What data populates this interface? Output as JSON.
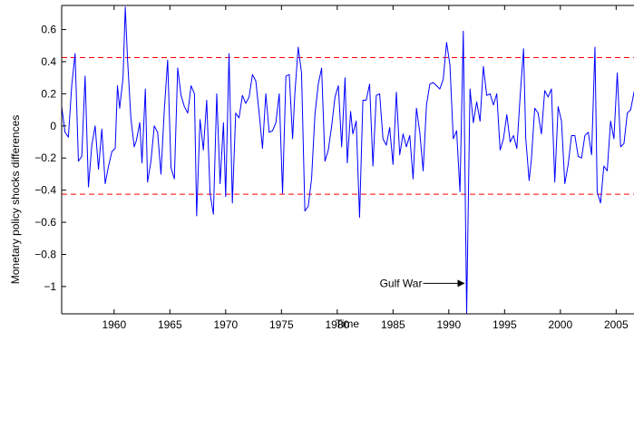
{
  "chart_data": {
    "type": "line",
    "title": "",
    "xlabel": "Time",
    "ylabel": "Monetary policy shocks differences",
    "xlim": [
      1955.3,
      2006.6
    ],
    "ylim": [
      -1.17,
      0.75
    ],
    "x_ticks": [
      1960,
      1965,
      1970,
      1975,
      1980,
      1985,
      1990,
      1995,
      2000,
      2005
    ],
    "x_tick_labels": [
      "1960",
      "1965",
      "1970",
      "1975",
      "1980",
      "1985",
      "1990",
      "1995",
      "2000",
      "2005"
    ],
    "y_ticks": [
      0.6,
      0.4,
      0.2,
      0,
      -0.2,
      -0.4,
      -0.6,
      -0.8,
      -1
    ],
    "y_tick_labels": [
      "0.6",
      "0.4",
      "0.2",
      "0",
      "−0.2",
      "−0.4",
      "−0.6",
      "−0.8",
      "−1"
    ],
    "grid": false,
    "series": [
      {
        "color": "#0000ff",
        "points": [
          [
            1955.3,
            0.12
          ],
          [
            1955.6,
            -0.04
          ],
          [
            1955.9,
            -0.07
          ],
          [
            1956.2,
            0.25
          ],
          [
            1956.5,
            0.45
          ],
          [
            1956.8,
            -0.22
          ],
          [
            1957.1,
            -0.19
          ],
          [
            1957.4,
            0.31
          ],
          [
            1957.7,
            -0.38
          ],
          [
            1958.0,
            -0.12
          ],
          [
            1958.3,
            0.0
          ],
          [
            1958.6,
            -0.27
          ],
          [
            1958.9,
            -0.02
          ],
          [
            1959.2,
            -0.36
          ],
          [
            1959.5,
            -0.25
          ],
          [
            1959.8,
            -0.16
          ],
          [
            1960.1,
            -0.14
          ],
          [
            1960.3,
            0.25
          ],
          [
            1960.5,
            0.11
          ],
          [
            1960.8,
            0.3
          ],
          [
            1961.0,
            0.74
          ],
          [
            1961.2,
            0.42
          ],
          [
            1961.5,
            0.05
          ],
          [
            1961.8,
            -0.13
          ],
          [
            1962.0,
            -0.09
          ],
          [
            1962.3,
            0.02
          ],
          [
            1962.5,
            -0.23
          ],
          [
            1962.8,
            0.23
          ],
          [
            1963.0,
            -0.35
          ],
          [
            1963.3,
            -0.22
          ],
          [
            1963.6,
            0.0
          ],
          [
            1963.9,
            -0.04
          ],
          [
            1964.2,
            -0.3
          ],
          [
            1964.5,
            0.1
          ],
          [
            1964.8,
            0.41
          ],
          [
            1965.1,
            -0.26
          ],
          [
            1965.4,
            -0.33
          ],
          [
            1965.7,
            0.36
          ],
          [
            1966.0,
            0.19
          ],
          [
            1966.3,
            0.12
          ],
          [
            1966.6,
            0.08
          ],
          [
            1966.9,
            0.25
          ],
          [
            1967.2,
            0.2
          ],
          [
            1967.4,
            -0.56
          ],
          [
            1967.7,
            0.04
          ],
          [
            1968.0,
            -0.15
          ],
          [
            1968.3,
            0.16
          ],
          [
            1968.6,
            -0.42
          ],
          [
            1968.9,
            -0.55
          ],
          [
            1969.2,
            0.2
          ],
          [
            1969.5,
            -0.36
          ],
          [
            1969.8,
            0.02
          ],
          [
            1970.0,
            -0.44
          ],
          [
            1970.3,
            0.45
          ],
          [
            1970.6,
            -0.48
          ],
          [
            1970.9,
            0.08
          ],
          [
            1971.2,
            0.05
          ],
          [
            1971.5,
            0.19
          ],
          [
            1971.8,
            0.14
          ],
          [
            1972.1,
            0.18
          ],
          [
            1972.4,
            0.32
          ],
          [
            1972.7,
            0.28
          ],
          [
            1973.0,
            0.08
          ],
          [
            1973.3,
            -0.14
          ],
          [
            1973.6,
            0.2
          ],
          [
            1973.9,
            -0.04
          ],
          [
            1974.2,
            -0.03
          ],
          [
            1974.5,
            0.02
          ],
          [
            1974.8,
            0.2
          ],
          [
            1975.1,
            -0.42
          ],
          [
            1975.4,
            0.31
          ],
          [
            1975.7,
            0.32
          ],
          [
            1976.0,
            -0.08
          ],
          [
            1976.2,
            0.2
          ],
          [
            1976.5,
            0.49
          ],
          [
            1976.8,
            0.33
          ],
          [
            1977.1,
            -0.53
          ],
          [
            1977.4,
            -0.5
          ],
          [
            1977.7,
            -0.33
          ],
          [
            1978.0,
            0.07
          ],
          [
            1978.3,
            0.26
          ],
          [
            1978.6,
            0.36
          ],
          [
            1978.9,
            -0.22
          ],
          [
            1979.2,
            -0.15
          ],
          [
            1979.5,
            0.0
          ],
          [
            1979.8,
            0.18
          ],
          [
            1980.1,
            0.25
          ],
          [
            1980.4,
            -0.13
          ],
          [
            1980.7,
            0.3
          ],
          [
            1980.9,
            -0.23
          ],
          [
            1981.2,
            0.09
          ],
          [
            1981.4,
            -0.05
          ],
          [
            1981.7,
            0.03
          ],
          [
            1982.0,
            -0.57
          ],
          [
            1982.3,
            0.16
          ],
          [
            1982.6,
            0.16
          ],
          [
            1982.9,
            0.26
          ],
          [
            1983.2,
            -0.25
          ],
          [
            1983.5,
            0.19
          ],
          [
            1983.8,
            0.2
          ],
          [
            1984.1,
            -0.08
          ],
          [
            1984.4,
            -0.12
          ],
          [
            1984.7,
            -0.01
          ],
          [
            1985.0,
            -0.24
          ],
          [
            1985.3,
            0.21
          ],
          [
            1985.6,
            -0.18
          ],
          [
            1985.9,
            -0.05
          ],
          [
            1986.2,
            -0.13
          ],
          [
            1986.5,
            -0.06
          ],
          [
            1986.8,
            -0.33
          ],
          [
            1987.1,
            0.11
          ],
          [
            1987.4,
            -0.04
          ],
          [
            1987.7,
            -0.28
          ],
          [
            1988.0,
            0.13
          ],
          [
            1988.3,
            0.26
          ],
          [
            1988.6,
            0.27
          ],
          [
            1988.9,
            0.25
          ],
          [
            1989.2,
            0.23
          ],
          [
            1989.5,
            0.29
          ],
          [
            1989.8,
            0.52
          ],
          [
            1990.1,
            0.38
          ],
          [
            1990.4,
            -0.08
          ],
          [
            1990.7,
            -0.03
          ],
          [
            1991.0,
            -0.41
          ],
          [
            1991.3,
            0.59
          ],
          [
            1991.6,
            -1.17
          ],
          [
            1991.9,
            0.23
          ],
          [
            1992.2,
            0.02
          ],
          [
            1992.5,
            0.15
          ],
          [
            1992.8,
            0.03
          ],
          [
            1993.1,
            0.37
          ],
          [
            1993.4,
            0.19
          ],
          [
            1993.7,
            0.2
          ],
          [
            1994.0,
            0.13
          ],
          [
            1994.3,
            0.2
          ],
          [
            1994.6,
            -0.15
          ],
          [
            1994.9,
            -0.08
          ],
          [
            1995.2,
            0.07
          ],
          [
            1995.5,
            -0.1
          ],
          [
            1995.8,
            -0.06
          ],
          [
            1996.1,
            -0.14
          ],
          [
            1996.4,
            0.19
          ],
          [
            1996.7,
            0.48
          ],
          [
            1996.9,
            -0.08
          ],
          [
            1997.2,
            -0.34
          ],
          [
            1997.4,
            -0.21
          ],
          [
            1997.7,
            0.11
          ],
          [
            1998.0,
            0.08
          ],
          [
            1998.3,
            -0.05
          ],
          [
            1998.6,
            0.22
          ],
          [
            1998.9,
            0.18
          ],
          [
            1999.2,
            0.23
          ],
          [
            1999.5,
            -0.35
          ],
          [
            1999.8,
            0.12
          ],
          [
            2000.1,
            0.03
          ],
          [
            2000.4,
            -0.36
          ],
          [
            2000.7,
            -0.24
          ],
          [
            2001.0,
            -0.06
          ],
          [
            2001.3,
            -0.06
          ],
          [
            2001.6,
            -0.19
          ],
          [
            2001.9,
            -0.2
          ],
          [
            2002.2,
            -0.06
          ],
          [
            2002.5,
            -0.04
          ],
          [
            2002.8,
            -0.18
          ],
          [
            2003.1,
            0.49
          ],
          [
            2003.3,
            -0.41
          ],
          [
            2003.6,
            -0.48
          ],
          [
            2003.9,
            -0.25
          ],
          [
            2004.2,
            -0.28
          ],
          [
            2004.5,
            0.03
          ],
          [
            2004.8,
            -0.08
          ],
          [
            2005.1,
            0.33
          ],
          [
            2005.4,
            -0.13
          ],
          [
            2005.7,
            -0.11
          ],
          [
            2006.0,
            0.08
          ],
          [
            2006.3,
            0.1
          ],
          [
            2006.6,
            0.21
          ],
          [
            2006.9,
            0.13
          ],
          [
            2007.2,
            0.2
          ]
        ]
      }
    ],
    "reference_lines": [
      {
        "y": 0.425,
        "color": "#ff0000",
        "style": "dashed"
      },
      {
        "y": -0.425,
        "color": "#ff0000",
        "style": "dashed"
      }
    ],
    "annotations": [
      {
        "text": "Gulf War",
        "arrow_to": [
          1991.6,
          -0.98
        ]
      }
    ]
  }
}
